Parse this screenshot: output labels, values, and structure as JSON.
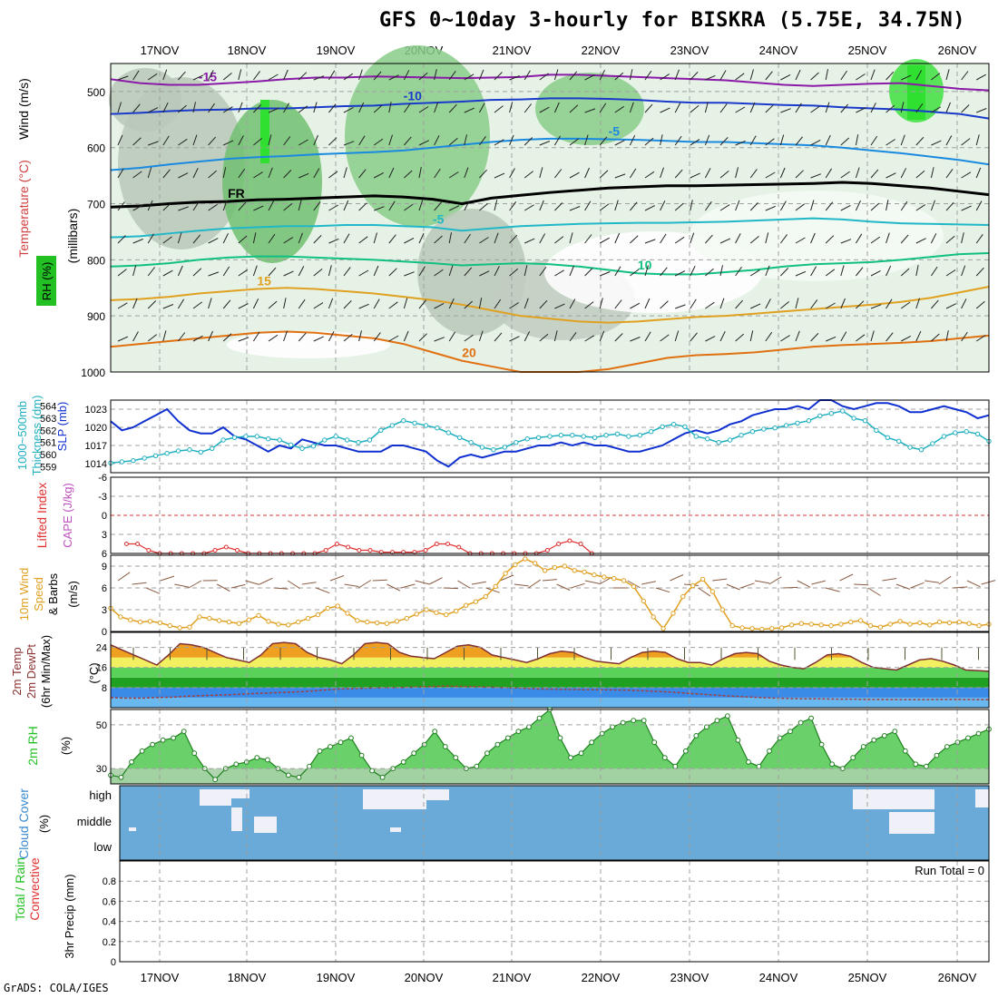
{
  "title": "GFS 0~10day 3-hourly for BISKRA (5.75E, 34.75N)",
  "credit": "GrADS: COLA/IGES",
  "chart_data": [
    {
      "type": "contour",
      "panel": "upper-air cross-section",
      "ylabels": [
        "Wind (m/s)",
        "Temperature (°C)",
        "RH (%)",
        "(millibars)"
      ],
      "legend_colors": {
        "wind": "#000000",
        "temperature": "#d04040",
        "rh": "#22c022"
      },
      "yticks": [
        500,
        600,
        700,
        800,
        900,
        1000
      ],
      "ylim": [
        450,
        1000
      ],
      "dates": [
        "17NOV",
        "18NOV",
        "19NOV",
        "20NOV",
        "21NOV",
        "22NOV",
        "23NOV",
        "24NOV",
        "25NOV",
        "26NOV"
      ],
      "isotherms": [
        {
          "label": "-15",
          "color": "#8a1aa8",
          "p": [
            478,
            485,
            488,
            488,
            485,
            482,
            478,
            475,
            475,
            473,
            474,
            475,
            476,
            475,
            474,
            470,
            470,
            472,
            474,
            476,
            478,
            480,
            484,
            488,
            490,
            488,
            486,
            485,
            490,
            495,
            498
          ]
        },
        {
          "label": "-10",
          "color": "#1a3acc",
          "p": [
            540,
            538,
            535,
            533,
            532,
            530,
            530,
            528,
            526,
            525,
            522,
            520,
            518,
            515,
            514,
            512,
            512,
            513,
            515,
            518,
            520,
            520,
            522,
            524,
            525,
            528,
            530,
            532,
            536,
            540,
            548
          ]
        },
        {
          "label": "-5",
          "color": "#1a8ae0",
          "p": [
            640,
            636,
            630,
            625,
            620,
            617,
            615,
            612,
            610,
            608,
            605,
            600,
            595,
            590,
            586,
            584,
            584,
            585,
            586,
            588,
            590,
            590,
            592,
            594,
            596,
            600,
            605,
            610,
            616,
            622,
            630
          ]
        },
        {
          "label": "FR",
          "color": "#000000",
          "p": [
            706,
            704,
            700,
            697,
            696,
            693,
            692,
            690,
            688,
            686,
            688,
            692,
            700,
            690,
            685,
            680,
            676,
            672,
            670,
            668,
            668,
            667,
            666,
            665,
            664,
            662,
            664,
            668,
            672,
            678,
            684
          ]
        },
        {
          "label": "-5",
          "color": "#20b8c8",
          "p": [
            760,
            758,
            753,
            748,
            744,
            742,
            740,
            740,
            738,
            738,
            740,
            742,
            748,
            744,
            740,
            738,
            736,
            735,
            734,
            734,
            733,
            732,
            730,
            728,
            726,
            728,
            732,
            735,
            736,
            737,
            738
          ]
        },
        {
          "label": "10",
          "color": "#10c080",
          "p": [
            812,
            810,
            806,
            800,
            796,
            794,
            794,
            796,
            798,
            800,
            803,
            806,
            810,
            808,
            806,
            808,
            812,
            818,
            824,
            826,
            826,
            822,
            818,
            812,
            808,
            806,
            804,
            800,
            795,
            790,
            788
          ]
        },
        {
          "label": "15",
          "color": "#e0a020",
          "p": [
            872,
            870,
            866,
            860,
            856,
            852,
            850,
            852,
            856,
            860,
            866,
            872,
            880,
            890,
            900,
            905,
            910,
            912,
            910,
            906,
            902,
            900,
            896,
            892,
            888,
            884,
            880,
            875,
            868,
            858,
            848
          ]
        },
        {
          "label": "20",
          "color": "#e07010",
          "p": [
            955,
            950,
            945,
            940,
            935,
            930,
            928,
            930,
            935,
            940,
            950,
            965,
            980,
            990,
            1000,
            1000,
            1000,
            995,
            985,
            975,
            970,
            968,
            965,
            960,
            955,
            952,
            950,
            948,
            945,
            940,
            935
          ]
        }
      ],
      "rh_fill_color": "#40d040"
    },
    {
      "type": "line",
      "panel": "SLP and 1000-500mb thickness",
      "ylabels": [
        "1000~500mb",
        "Thickness (dm)",
        "SLP (mb)"
      ],
      "slp_ticks": [
        1014,
        1017,
        1020,
        1023
      ],
      "thickness_ticks": [
        559,
        560,
        561,
        562,
        563,
        564
      ],
      "series": [
        {
          "name": "SLP (mb)",
          "color": "#1030d0",
          "values": [
            1021,
            1019.5,
            1020,
            1021,
            1022,
            1023,
            1021,
            1019.5,
            1019,
            1019,
            1020,
            1018.5,
            1018,
            1017,
            1016,
            1017,
            1016.5,
            1018,
            1017.5,
            1017,
            1017,
            1016.5,
            1016,
            1016,
            1016,
            1017,
            1017,
            1016.5,
            1016,
            1014.5,
            1013.5,
            1015,
            1015.5,
            1015,
            1015.5,
            1016,
            1016,
            1016.5,
            1017,
            1017,
            1017.5,
            1017,
            1017.5,
            1017,
            1017,
            1016.5,
            1016,
            1016,
            1016.5,
            1017,
            1018,
            1019,
            1019.5,
            1019,
            1019.5,
            1020.5,
            1021,
            1022,
            1022.5,
            1023,
            1023,
            1023.5,
            1023,
            1024.5,
            1024.5,
            1023.5,
            1023,
            1023.5,
            1024,
            1024,
            1023.5,
            1022.5,
            1022.5,
            1023,
            1023.5,
            1023,
            1022.5,
            1021.5,
            1022
          ]
        },
        {
          "name": "1000-500mb Thickness (dm)",
          "color": "#20b0c0",
          "values": [
            559.3,
            559.4,
            559.5,
            559.7,
            559.9,
            560.1,
            560.3,
            560.4,
            560.2,
            560.5,
            561.2,
            561.4,
            561.5,
            561.5,
            561.3,
            561.2,
            560.8,
            560.5,
            560.7,
            561.2,
            561.5,
            561.2,
            561.0,
            561.2,
            562.0,
            562.4,
            562.8,
            562.6,
            562.4,
            562.2,
            561.8,
            561.4,
            561.0,
            560.6,
            560.4,
            560.6,
            561.0,
            561.3,
            561.4,
            561.5,
            561.6,
            561.6,
            561.5,
            561.4,
            561.6,
            561.7,
            561.5,
            561.6,
            561.9,
            562.3,
            562.5,
            562.3,
            561.5,
            561.3,
            561.0,
            561.2,
            561.6,
            561.9,
            562.1,
            562.2,
            562.4,
            562.6,
            562.8,
            563.2,
            563.4,
            563.6,
            563.0,
            562.8,
            562.0,
            561.4,
            561.1,
            560.6,
            560.4,
            560.9,
            561.5,
            561.8,
            561.9,
            561.7,
            561.1
          ]
        }
      ]
    },
    {
      "type": "line",
      "panel": "Lifted Index and CAPE",
      "ylabels": [
        "Lifted Index",
        "CAPE (J/kg)"
      ],
      "yticks": [
        -6,
        -3,
        0,
        3,
        6
      ],
      "ylim": [
        6,
        -6
      ],
      "series": [
        {
          "name": "Lifted Index",
          "color": "#e03030",
          "values": [
            4.5,
            4.5,
            5.5,
            6,
            6,
            6,
            6,
            6,
            5.5,
            5.0,
            5.5,
            6,
            6,
            6,
            6,
            6,
            6,
            6,
            5.5,
            4.5,
            5,
            5.5,
            5.5,
            5.8,
            5.8,
            5.8,
            5.8,
            5.5,
            4.5,
            4.5,
            5.0,
            6,
            6,
            6,
            6,
            6,
            6,
            6,
            5.5,
            4.5,
            4.0,
            4.5,
            6
          ]
        }
      ]
    },
    {
      "type": "line",
      "panel": "10m wind",
      "ylabels": [
        "10m Wind",
        "Speed",
        "& Barbs",
        "(m/s)"
      ],
      "yticks": [
        0,
        3,
        6,
        9
      ],
      "ylim": [
        0,
        10.5
      ],
      "series": [
        {
          "name": "10m Wind Speed",
          "color": "#e0a020",
          "values": [
            3.2,
            2.0,
            1.6,
            1.3,
            1.4,
            1.2,
            0.8,
            0.5,
            0.6,
            2.0,
            1.8,
            1.5,
            1.3,
            1.1,
            1.6,
            2.2,
            1.4,
            1.0,
            0.9,
            1.3,
            1.8,
            2.3,
            3.2,
            3.5,
            2.5,
            1.5,
            1.3,
            1.2,
            1.1,
            1.4,
            1.8,
            2.4,
            3.0,
            2.6,
            2.3,
            2.8,
            3.6,
            4.1,
            4.8,
            6.2,
            8.0,
            9.2,
            10.0,
            9.4,
            8.4,
            8.8,
            9.0,
            8.4,
            8.2,
            7.8,
            7.5,
            7.3,
            7.0,
            6.2,
            4.2,
            2.0,
            0.4,
            2.5,
            4.8,
            6.3,
            7.2,
            5.5,
            3.0,
            0.8,
            0.5,
            0.4,
            0.3,
            0.4,
            0.5,
            0.9,
            1.1,
            1.0,
            0.9,
            0.8,
            1.0,
            1.3,
            1.5,
            0.8,
            0.6,
            1.0,
            1.4,
            1.0,
            1.2,
            0.9,
            1.3,
            1.2,
            1.3,
            1.1,
            0.8,
            1.0
          ]
        }
      ]
    },
    {
      "type": "area",
      "panel": "2m temperature and dew point",
      "ylabels": [
        "2m Temp",
        "2m DewPt",
        "(6hr Min/Max)"
      ],
      "yticks": [
        8,
        16,
        24
      ],
      "ylim": [
        0,
        30
      ],
      "series": [
        {
          "name": "2m Temp",
          "color": "#803030",
          "values": [
            25,
            23,
            21,
            19,
            17,
            21,
            25.5,
            25,
            24,
            22,
            20,
            19,
            18,
            21,
            25.5,
            26,
            25.5,
            22,
            20,
            19,
            17.5,
            21,
            25.5,
            26,
            25.5,
            22,
            20.5,
            20,
            19.5,
            22,
            24.5,
            25,
            24,
            21,
            20,
            19,
            18,
            19.5,
            21.5,
            22.5,
            22,
            20,
            18.5,
            18,
            17.5,
            20,
            22,
            22.5,
            22,
            19.5,
            18,
            18,
            17,
            19.5,
            21.5,
            22,
            21.5,
            18.5,
            17,
            16,
            15.5,
            18,
            21,
            21.5,
            20.5,
            18,
            16,
            15.5,
            15,
            17,
            19,
            19.5,
            18.5,
            17,
            15,
            14.8,
            14.5
          ]
        },
        {
          "name": "2m DewPt",
          "color": "#a04040",
          "values": [
            4,
            3.8,
            3.8,
            4,
            4.2,
            4.5,
            4.8,
            5,
            5.2,
            5.5,
            5.8,
            6,
            6.2,
            6.5,
            7,
            7.4,
            7.6,
            7.8,
            8,
            8,
            8.2,
            8.4,
            8.6,
            8.5,
            8.4,
            8.2,
            8,
            7.8,
            7.5,
            7.4,
            7.3,
            7.2,
            7.2,
            7.1,
            7,
            6.8,
            6.5,
            6.2,
            5.8,
            5.4,
            5,
            4.6,
            4.3,
            4,
            3.8,
            3.6,
            3.5,
            3.5,
            3.4,
            3.4,
            3.3,
            3.3,
            3.2,
            3.2,
            3.2,
            3.3,
            3.3,
            3.2,
            3.2
          ]
        }
      ],
      "band_colors": [
        "#6ab8f0",
        "#3a8ae8",
        "#20a020",
        "#5ad25a",
        "#f0f060",
        "#f0a020"
      ]
    },
    {
      "type": "area",
      "panel": "2m relative humidity",
      "ylabels": [
        "2m RH",
        "(%)"
      ],
      "yticks": [
        30,
        50
      ],
      "ylim": [
        23,
        57
      ],
      "series": [
        {
          "name": "2m RH",
          "color": "#208020",
          "values": [
            27,
            26,
            33,
            38,
            41,
            43,
            44,
            47,
            37,
            30,
            25,
            30,
            32,
            33,
            35,
            34,
            30,
            27,
            26,
            31,
            38,
            40,
            42,
            44,
            36,
            29,
            26,
            30,
            33,
            37,
            41,
            47,
            40,
            35,
            30,
            31,
            37,
            41,
            44,
            47,
            49,
            53,
            57,
            44,
            35,
            37,
            42,
            46,
            49,
            51,
            52,
            52,
            42,
            35,
            31,
            38,
            45,
            49,
            52,
            54,
            43,
            33,
            31,
            38,
            44,
            47,
            51,
            53,
            41,
            32,
            30,
            35,
            40,
            43,
            45,
            47,
            38,
            32,
            31,
            36,
            40,
            42,
            44,
            46,
            48
          ]
        }
      ]
    },
    {
      "type": "heatmap",
      "panel": "cloud cover",
      "ylabels": [
        "Cloud Cover",
        "(%)"
      ],
      "levels": [
        "high",
        "middle",
        "low"
      ],
      "colors": {
        "clear": "#f0f0f8",
        "cloud": "#6aaad8"
      }
    },
    {
      "type": "bar",
      "panel": "3hr precipitation",
      "ylabels": [
        "Total / Rain",
        "Convective",
        "3hr Precip (mm)"
      ],
      "legend_colors": {
        "total": "#22c022",
        "convective": "#e03030"
      },
      "yticks": [
        0,
        0.2,
        0.4,
        0.6,
        0.8
      ],
      "ylim": [
        0,
        1
      ],
      "values": [],
      "run_total": "Run Total = 0"
    }
  ]
}
